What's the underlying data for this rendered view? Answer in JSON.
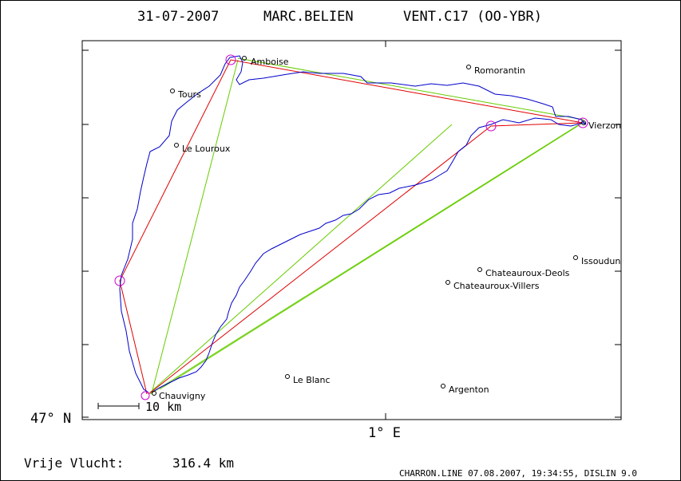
{
  "header": {
    "date": "31-07-2007",
    "pilot": "MARC.BELIEN",
    "glider": "VENT.C17 (OO-YBR)"
  },
  "axes": {
    "lat_label": "47° N",
    "lon_label": "1° E"
  },
  "scale_bar": {
    "label": "10 km"
  },
  "distance": {
    "label": "Vrije Vlucht:",
    "value": "316.4 km"
  },
  "footer": {
    "text": "CHARRON.LINE 07.08.2007, 19:34:55, DISLIN 9.0"
  },
  "places": [
    {
      "name": "Amboise"
    },
    {
      "name": "Romorantin"
    },
    {
      "name": "Tours"
    },
    {
      "name": "Le Louroux"
    },
    {
      "name": "Vierzon"
    },
    {
      "name": "Issoudun"
    },
    {
      "name": "Chateauroux-Deols"
    },
    {
      "name": "Chateauroux-Villers"
    },
    {
      "name": "Le Blanc"
    },
    {
      "name": "Argenton"
    },
    {
      "name": "Chauvigny"
    }
  ],
  "colors": {
    "track": "#0000cc",
    "task_line": "#e00000",
    "sector_line": "#66cc00",
    "turnpoint": "#cc00cc",
    "frame": "#000000"
  }
}
